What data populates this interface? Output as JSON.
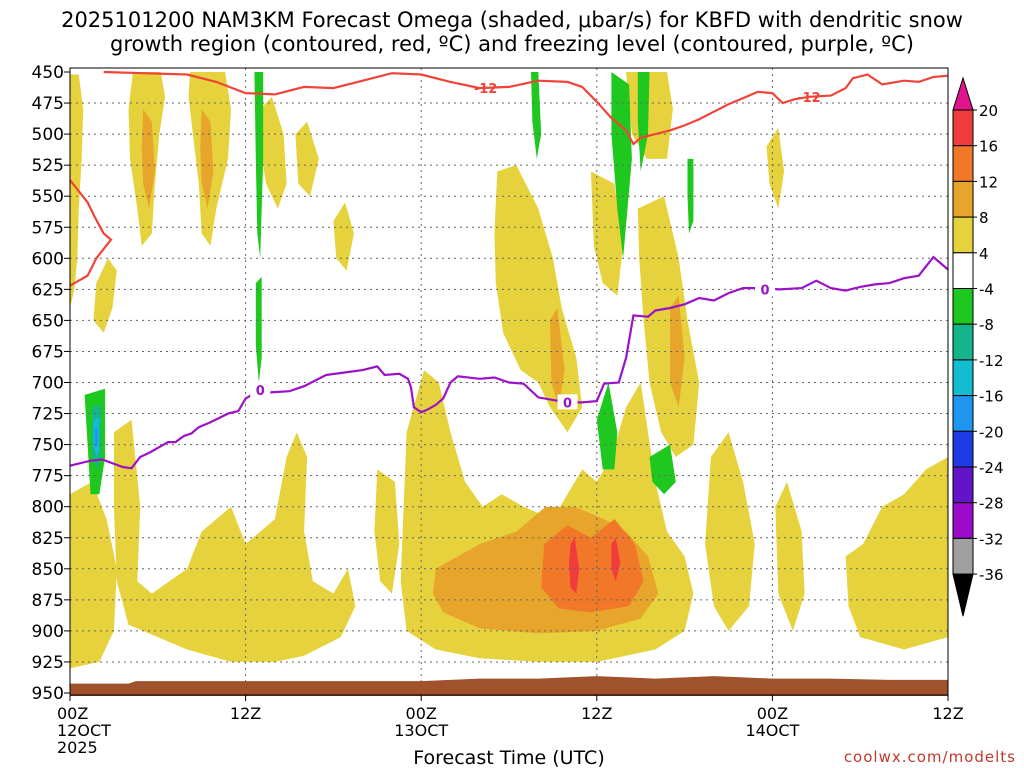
{
  "title": {
    "line1": "2025101200 NAM3KM Forecast Omega (shaded, μbar/s) for KBFD with dendritic snow",
    "line2": "growth region (contoured, red, ºC) and freezing level (contoured, purple, ºC)"
  },
  "credit": "coolwx.com/modelts",
  "colors": {
    "red_contour": "#f04438",
    "purple_contour": "#9b12c8",
    "terrain": "#a0522d"
  },
  "chart_data": {
    "type": "heatmap",
    "title": "2025101200 NAM3KM Forecast Omega (shaded, μbar/s) for KBFD with dendritic snow growth region (contoured, red, ºC) and freezing level (contoured, purple, ºC)",
    "xlabel": "Forecast Time (UTC)",
    "ylabel": "",
    "y_scale": "pressure (hPa), reversed",
    "ylim": [
      950,
      450
    ],
    "y_ticks": [
      "450",
      "475",
      "500",
      "525",
      "550",
      "575",
      "600",
      "625",
      "650",
      "675",
      "700",
      "725",
      "750",
      "775",
      "800",
      "825",
      "850",
      "875",
      "900",
      "925",
      "950"
    ],
    "x_ticks": [
      {
        "hour": 0,
        "label": "00Z",
        "sub": "12OCT",
        "sub2": "2025"
      },
      {
        "hour": 12,
        "label": "12Z",
        "sub": "",
        "sub2": ""
      },
      {
        "hour": 24,
        "label": "00Z",
        "sub": "13OCT",
        "sub2": ""
      },
      {
        "hour": 36,
        "label": "12Z",
        "sub": "",
        "sub2": ""
      },
      {
        "hour": 48,
        "label": "00Z",
        "sub": "14OCT",
        "sub2": ""
      },
      {
        "hour": 60,
        "label": "12Z",
        "sub": "",
        "sub2": ""
      }
    ],
    "xlim_hours": [
      0,
      60
    ],
    "grid": true,
    "colorbar": {
      "levels": [
        "20",
        "16",
        "12",
        "8",
        "4",
        "-4",
        "-8",
        "-12",
        "-16",
        "-20",
        "-24",
        "-28",
        "-32",
        "-36"
      ],
      "colors": [
        "#e0148c",
        "#f03c3c",
        "#f07828",
        "#e8a52c",
        "#e6d23c",
        "#ffffff",
        "#1ec81e",
        "#14b48c",
        "#14bcd2",
        "#1e96f0",
        "#1e3ce6",
        "#6414c8",
        "#9b0ac8",
        "#a0a0a0",
        "#000000"
      ]
    },
    "contours": [
      {
        "name": "-12",
        "color": "#f04438",
        "labels": [
          {
            "hour": 28.4,
            "p": 463
          },
          {
            "hour": 50.5,
            "p": 470
          }
        ],
        "points": [
          [
            0,
            537
          ],
          [
            1.2,
            555
          ],
          [
            1.7,
            567
          ],
          [
            2.3,
            580
          ],
          [
            2.8,
            585
          ],
          [
            1.8,
            600
          ],
          [
            1.2,
            614
          ],
          [
            0,
            622
          ]
        ]
      },
      {
        "name": "-12 upper",
        "color": "#f04438",
        "points": [
          [
            2.3,
            450
          ],
          [
            8,
            452
          ],
          [
            10,
            458
          ],
          [
            12,
            467
          ],
          [
            14,
            468
          ],
          [
            16,
            462
          ],
          [
            18,
            463
          ],
          [
            20,
            457
          ],
          [
            22,
            451
          ],
          [
            24,
            452
          ],
          [
            26,
            458
          ],
          [
            28,
            463
          ],
          [
            30,
            462
          ],
          [
            32,
            457
          ],
          [
            34,
            458
          ],
          [
            35,
            462
          ],
          [
            36,
            474
          ],
          [
            37,
            487
          ],
          [
            38,
            497
          ],
          [
            38.5,
            508
          ],
          [
            39,
            503
          ],
          [
            40,
            500
          ],
          [
            41,
            497
          ],
          [
            42,
            493
          ],
          [
            43,
            488
          ],
          [
            44,
            482
          ],
          [
            45,
            476
          ],
          [
            46,
            471
          ],
          [
            47,
            466
          ],
          [
            48,
            467
          ],
          [
            48.7,
            475
          ],
          [
            49.5,
            472
          ],
          [
            50.5,
            470
          ],
          [
            52,
            469
          ],
          [
            53,
            463
          ],
          [
            53.5,
            455
          ],
          [
            54.5,
            452
          ],
          [
            55.5,
            460
          ],
          [
            57,
            457
          ],
          [
            58,
            458
          ],
          [
            59,
            454
          ],
          [
            60,
            453
          ]
        ]
      },
      {
        "name": "0",
        "color": "#9b12c8",
        "labels": [
          {
            "hour": 13,
            "p": 706
          },
          {
            "hour": 34,
            "p": 716
          },
          {
            "hour": 47.5,
            "p": 625
          }
        ],
        "points": [
          [
            0,
            767
          ],
          [
            1.4,
            763
          ],
          [
            2.2,
            762
          ],
          [
            3.6,
            768
          ],
          [
            4.2,
            769
          ],
          [
            4.8,
            760
          ],
          [
            5.5,
            756
          ],
          [
            6.7,
            748
          ],
          [
            7.2,
            748
          ],
          [
            7.8,
            743
          ],
          [
            8.3,
            741
          ],
          [
            8.8,
            736
          ],
          [
            9.6,
            732
          ],
          [
            10.8,
            725
          ],
          [
            11.5,
            723
          ],
          [
            12,
            713
          ],
          [
            13,
            706
          ],
          [
            13.7,
            708
          ],
          [
            15,
            707
          ],
          [
            16,
            703
          ],
          [
            17.5,
            694
          ],
          [
            18.7,
            692
          ],
          [
            20,
            690
          ],
          [
            21,
            687
          ],
          [
            21.5,
            694
          ],
          [
            22.5,
            693
          ],
          [
            23.1,
            697
          ],
          [
            23.3,
            704
          ],
          [
            23.5,
            720
          ],
          [
            24,
            724
          ],
          [
            24.4,
            722
          ],
          [
            25,
            718
          ],
          [
            25.5,
            713
          ],
          [
            26,
            700
          ],
          [
            26.5,
            695
          ],
          [
            28,
            697
          ],
          [
            29,
            696
          ],
          [
            30,
            700
          ],
          [
            31,
            701
          ],
          [
            32,
            712
          ],
          [
            33,
            714
          ],
          [
            34,
            716
          ],
          [
            35,
            716
          ],
          [
            36,
            715
          ],
          [
            36.5,
            701
          ],
          [
            37.5,
            700
          ],
          [
            38,
            680
          ],
          [
            38.5,
            646
          ],
          [
            39.5,
            647
          ],
          [
            40,
            642
          ],
          [
            41,
            640
          ],
          [
            42,
            637
          ],
          [
            43,
            632
          ],
          [
            44,
            634
          ],
          [
            45,
            628
          ],
          [
            46,
            624
          ],
          [
            47,
            624
          ],
          [
            48.5,
            625
          ],
          [
            50,
            624
          ],
          [
            51,
            618
          ],
          [
            52,
            624
          ],
          [
            53,
            626
          ],
          [
            54,
            623
          ],
          [
            55,
            621
          ],
          [
            56,
            620
          ],
          [
            57,
            616
          ],
          [
            58,
            614
          ],
          [
            59,
            599
          ],
          [
            60,
            609
          ]
        ]
      }
    ],
    "omega_shading_note": "positive omega (4–20 μbar/s) shaded yellow-to-red; negative omega (-4 to -36 μbar/s) shaded green-to-black"
  }
}
